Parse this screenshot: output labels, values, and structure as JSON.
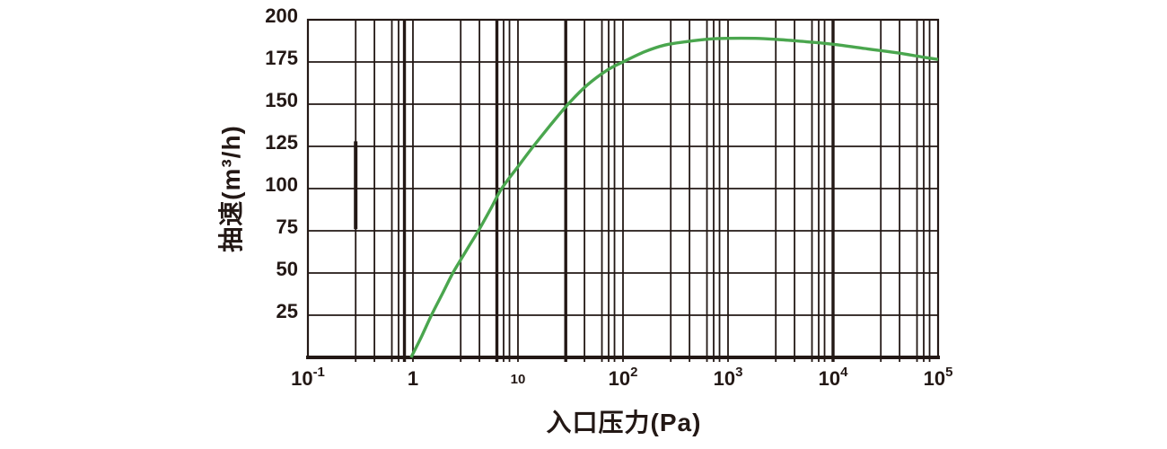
{
  "page": {
    "background": "#ffffff"
  },
  "chart_data": {
    "type": "line",
    "title": "",
    "xlabel": "入口压力(Pa)",
    "ylabel": "抽速(m³/h)",
    "x_scale": "log",
    "x_range": [
      0.1,
      100000
    ],
    "y_range": [
      0,
      200
    ],
    "grid": "on",
    "legend": "none",
    "colors": {
      "ink": "#231815",
      "curve": "#4aa64e",
      "background": "#ffffff"
    },
    "y_ticks": [
      {
        "label": "200",
        "value": 200
      },
      {
        "label": "175",
        "value": 175
      },
      {
        "label": "150",
        "value": 150
      },
      {
        "label": "125",
        "value": 125
      },
      {
        "label": "100",
        "value": 100
      },
      {
        "label": "75",
        "value": 75
      },
      {
        "label": "50",
        "value": 50
      },
      {
        "label": "25",
        "value": 25
      }
    ],
    "x_ticks": [
      {
        "base": "10",
        "sup": "-1",
        "value": 0.1,
        "small": false
      },
      {
        "base": "1",
        "sup": "",
        "value": 1,
        "small": false
      },
      {
        "base": "10",
        "sup": "",
        "value": 10,
        "small": true
      },
      {
        "base": "10",
        "sup": "2",
        "value": 100,
        "small": false
      },
      {
        "base": "10",
        "sup": "3",
        "value": 1000,
        "small": false
      },
      {
        "base": "10",
        "sup": "4",
        "value": 10000,
        "small": false
      },
      {
        "base": "10",
        "sup": "5",
        "value": 100000,
        "small": false
      }
    ],
    "minor_gridline_multipliers": [
      2.85,
      4.3,
      6.3,
      7.3,
      8.3
    ],
    "bold_gridline_values": [
      0.83,
      6.3,
      28.5,
      10000
    ],
    "artifact_bold_segment": {
      "x_value": 0.285,
      "y_from": 76,
      "y_to": 128
    },
    "series": [
      {
        "name": "pumping-speed",
        "color": "#4aa64e",
        "points": [
          [
            0.96,
            0
          ],
          [
            1.2,
            12
          ],
          [
            1.5,
            25
          ],
          [
            1.9,
            37.5
          ],
          [
            2.4,
            50
          ],
          [
            3.2,
            63
          ],
          [
            4.2,
            75
          ],
          [
            5.5,
            88
          ],
          [
            7,
            100
          ],
          [
            10,
            113
          ],
          [
            14,
            125
          ],
          [
            20,
            137
          ],
          [
            30,
            150
          ],
          [
            45,
            161
          ],
          [
            70,
            170
          ],
          [
            100,
            175
          ],
          [
            160,
            181
          ],
          [
            250,
            185
          ],
          [
            400,
            187
          ],
          [
            650,
            188.5
          ],
          [
            1000,
            189
          ],
          [
            1800,
            189
          ],
          [
            3000,
            188.3
          ],
          [
            5500,
            187
          ],
          [
            10000,
            185.5
          ],
          [
            20000,
            183
          ],
          [
            40000,
            180.5
          ],
          [
            70000,
            178
          ],
          [
            100000,
            176.5
          ]
        ]
      }
    ]
  }
}
